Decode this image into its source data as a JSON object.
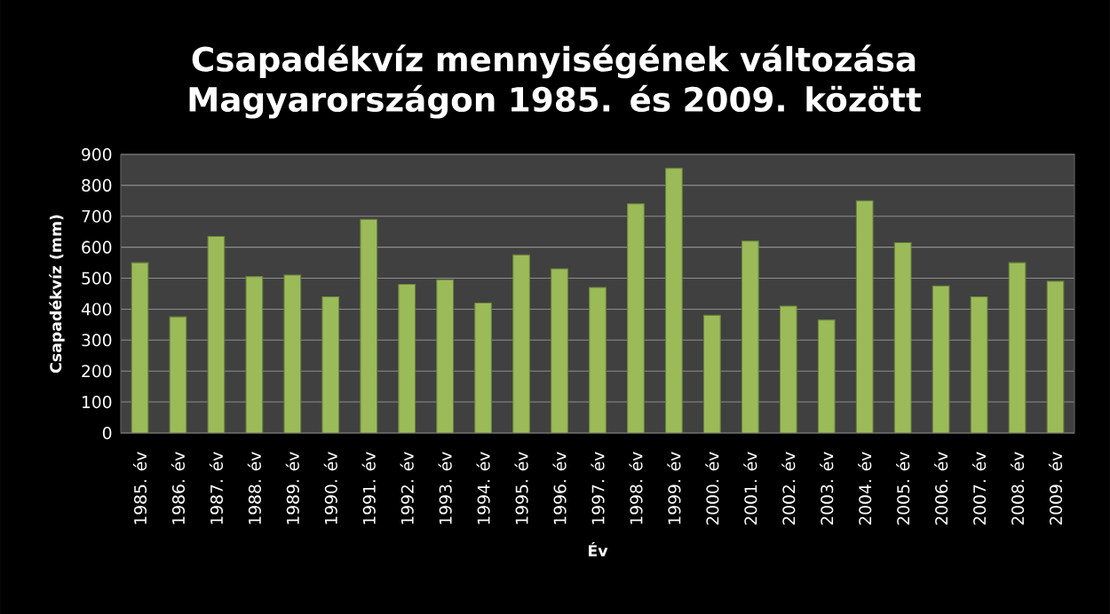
{
  "chart_data": {
    "type": "bar",
    "title": "Csapadékvíz mennyiségének változása Magyarországon 1985. és 2009. között",
    "xlabel": "Év",
    "ylabel": "Csapadékvíz (mm)",
    "categories": [
      "1985. év",
      "1986. év",
      "1987. év",
      "1988. év",
      "1989. év",
      "1990. év",
      "1991. év",
      "1992. év",
      "1993. év",
      "1994. év",
      "1995. év",
      "1996. év",
      "1997. év",
      "1998. év",
      "1999. év",
      "2000. év",
      "2001. év",
      "2002. év",
      "2003. év",
      "2004. év",
      "2005. év",
      "2006. év",
      "2007. év",
      "2008. év",
      "2009. év"
    ],
    "values": [
      550,
      375,
      635,
      505,
      510,
      440,
      690,
      480,
      495,
      420,
      575,
      530,
      470,
      740,
      855,
      380,
      620,
      410,
      365,
      750,
      615,
      475,
      440,
      550,
      490
    ],
    "color": "#9bbb59",
    "ylim": [
      0,
      900
    ],
    "yticks": [
      0,
      100,
      200,
      300,
      400,
      500,
      600,
      700,
      800,
      900
    ],
    "grid": "y"
  }
}
